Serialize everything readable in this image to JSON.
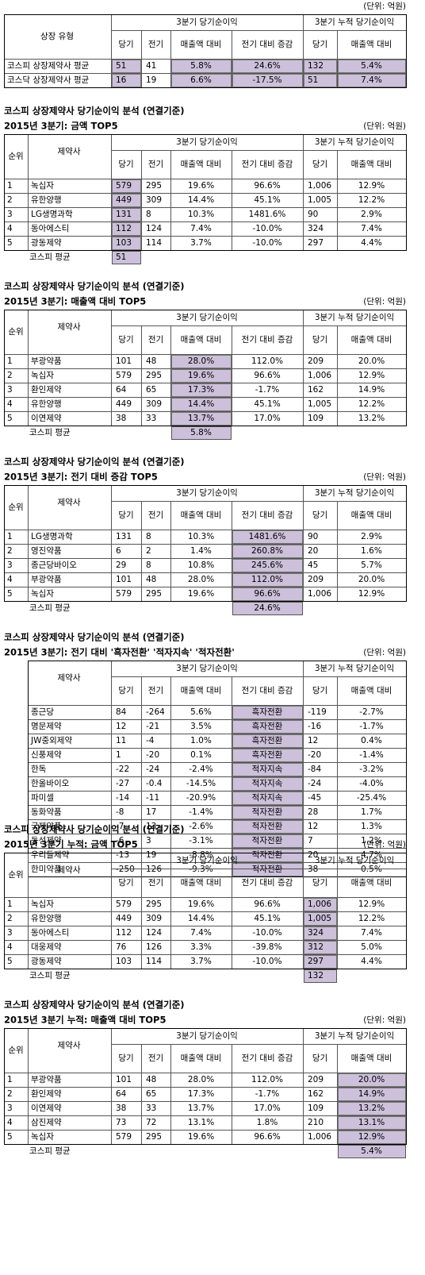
{
  "highlight_color": "#ccc0da",
  "summary": {
    "unit": "(단위: 억원)",
    "header": {
      "type": "상장 유형",
      "group1": "3분기 당기순이익",
      "group2": "3분기 누적 당기순이익",
      "cols": [
        "당기",
        "전기",
        "매출액 대비",
        "전기 대비 증감",
        "당기",
        "매출액 대비"
      ]
    },
    "highlight_columns": [
      0,
      2,
      3,
      4,
      5
    ],
    "rows": [
      [
        "코스피 상장제약사 평균",
        "51",
        "41",
        "5.8%",
        "24.6%",
        "132",
        "5.4%"
      ],
      [
        "코스닥 상장제약사 평균",
        "16",
        "19",
        "6.6%",
        "-17.5%",
        "51",
        "7.4%"
      ]
    ]
  },
  "sections": [
    {
      "title": "코스피 상장제약사 당기순이익 분석 (연결기준)",
      "subtitle": "2015년 3분기:  금액 TOP5",
      "unit": "(단위: 억원)",
      "header": {
        "rank": "순위",
        "company": "제약사",
        "group1": "3분기 당기순이익",
        "group2": "3분기 누적 당기순이익",
        "cols": [
          "당기",
          "전기",
          "매출액 대비",
          "전기 대비 증감",
          "당기",
          "매출액 대비"
        ]
      },
      "highlight_columns": [
        0
      ],
      "rows": [
        [
          "1",
          "녹십자",
          "579",
          "295",
          "19.6%",
          "96.6%",
          "1,006",
          "12.9%"
        ],
        [
          "2",
          "유한양행",
          "449",
          "309",
          "14.4%",
          "45.1%",
          "1,005",
          "12.2%"
        ],
        [
          "3",
          "LG생명과학",
          "131",
          "8",
          "10.3%",
          "1481.6%",
          "90",
          "2.9%"
        ],
        [
          "4",
          "동아에스티",
          "112",
          "124",
          "7.4%",
          "-10.0%",
          "324",
          "7.4%"
        ],
        [
          "5",
          "광동제약",
          "103",
          "114",
          "3.7%",
          "-10.0%",
          "297",
          "4.4%"
        ]
      ],
      "average": {
        "label": "코스피 평균",
        "value": "51"
      }
    },
    {
      "title": "코스피 상장제약사 당기순이익 분석 (연결기준)",
      "subtitle": "2015년 3분기:  매출액 대비 TOP5",
      "unit": "(단위: 억원)",
      "header": {
        "rank": "순위",
        "company": "제약사",
        "group1": "3분기 당기순이익",
        "group2": "3분기 누적 당기순이익",
        "cols": [
          "당기",
          "전기",
          "매출액 대비",
          "전기 대비 증감",
          "당기",
          "매출액 대비"
        ]
      },
      "highlight_columns": [
        2
      ],
      "rows": [
        [
          "1",
          "부광약품",
          "101",
          "48",
          "28.0%",
          "112.0%",
          "209",
          "20.0%"
        ],
        [
          "2",
          "녹십자",
          "579",
          "295",
          "19.6%",
          "96.6%",
          "1,006",
          "12.9%"
        ],
        [
          "3",
          "환인제약",
          "64",
          "65",
          "17.3%",
          "-1.7%",
          "162",
          "14.9%"
        ],
        [
          "4",
          "유한양행",
          "449",
          "309",
          "14.4%",
          "45.1%",
          "1,005",
          "12.2%"
        ],
        [
          "5",
          "이연제약",
          "38",
          "33",
          "13.7%",
          "17.0%",
          "109",
          "13.2%"
        ]
      ],
      "average": {
        "label": "코스피 평균",
        "value": "5.8%"
      }
    },
    {
      "title": "코스피 상장제약사 당기순이익 분석 (연결기준)",
      "subtitle": "2015년 3분기:  전기 대비 증감 TOP5",
      "unit": "(단위: 억원)",
      "header": {
        "rank": "순위",
        "company": "제약사",
        "group1": "3분기 당기순이익",
        "group2": "3분기 누적 당기순이익",
        "cols": [
          "당기",
          "전기",
          "매출액 대비",
          "전기 대비 증감",
          "당기",
          "매출액 대비"
        ]
      },
      "highlight_columns": [
        3
      ],
      "rows": [
        [
          "1",
          "LG생명과학",
          "131",
          "8",
          "10.3%",
          "1481.6%",
          "90",
          "2.9%"
        ],
        [
          "2",
          "영진약품",
          "6",
          "2",
          "1.4%",
          "260.8%",
          "20",
          "1.6%"
        ],
        [
          "3",
          "종근당바이오",
          "29",
          "8",
          "10.8%",
          "245.6%",
          "45",
          "5.7%"
        ],
        [
          "4",
          "부광약품",
          "101",
          "48",
          "28.0%",
          "112.0%",
          "209",
          "20.0%"
        ],
        [
          "5",
          "녹십자",
          "579",
          "295",
          "19.6%",
          "96.6%",
          "1,006",
          "12.9%"
        ]
      ],
      "average": {
        "label": "코스피 평균",
        "value": "24.6%"
      }
    },
    {
      "title": "코스피 상장제약사 당기순이익 분석 (연결기준)",
      "subtitle": "2015년 3분기: 전기 대비 '흑자전환' '적자지속' '적자전환'",
      "unit": "(단위: 억원)",
      "header": {
        "company": "제약사",
        "group1": "3분기 당기순이익",
        "group2": "3분기 누적 당기순이익",
        "cols": [
          "당기",
          "전기",
          "매출액 대비",
          "전기 대비 증감",
          "당기",
          "매출액 대비"
        ]
      },
      "highlight_columns": [
        3
      ],
      "rows": [
        [
          "종근당",
          "84",
          "-264",
          "5.6%",
          "흑자전환",
          "-119",
          "-2.7%"
        ],
        [
          "명문제약",
          "12",
          "-21",
          "3.5%",
          "흑자전환",
          "-16",
          "-1.7%"
        ],
        [
          "JW중외제약",
          "11",
          "-4",
          "1.0%",
          "흑자전환",
          "12",
          "0.4%"
        ],
        [
          "신풍제약",
          "1",
          "-20",
          "0.1%",
          "흑자전환",
          "-20",
          "-1.4%"
        ],
        [
          "한독",
          "-22",
          "-24",
          "-2.4%",
          "적자지속",
          "-84",
          "-3.2%"
        ],
        [
          "한올바이오",
          "-27",
          "-0.4",
          "-14.5%",
          "적자지속",
          "-24",
          "-4.0%"
        ],
        [
          "파미셀",
          "-14",
          "-11",
          "-20.9%",
          "적자지속",
          "-45",
          "-25.4%"
        ],
        [
          "동화약품",
          "-8",
          "17",
          "-1.4%",
          "적자전환",
          "28",
          "1.7%"
        ],
        [
          "국제약품",
          "-7",
          "13",
          "-2.6%",
          "적자전환",
          "12",
          "1.3%"
        ],
        [
          "동성제약",
          "-6",
          "3",
          "-3.1%",
          "적자전환",
          "7",
          "1.2%"
        ],
        [
          "우리들제약",
          "-13",
          "19",
          "-8.8%",
          "적자전환",
          "20",
          "4.7%"
        ],
        [
          "한미약품",
          "-250",
          "126",
          "-9.3%",
          "적자전환",
          "38",
          "0.5%"
        ]
      ]
    },
    {
      "title": "코스피 상장제약사 당기순이익 분석 (연결기준)",
      "subtitle": "2015년 3분기 누적:  금액 TOP5",
      "unit": "(단위: 억원)",
      "header": {
        "rank": "순위",
        "company": "제약사",
        "group1": "3분기 당기순이익",
        "group2": "3분기 누적 당기순이익",
        "cols": [
          "당기",
          "전기",
          "매출액 대비",
          "전기 대비 증감",
          "당기",
          "매출액 대비"
        ]
      },
      "highlight_columns": [
        4
      ],
      "rows": [
        [
          "1",
          "녹십자",
          "579",
          "295",
          "19.6%",
          "96.6%",
          "1,006",
          "12.9%"
        ],
        [
          "2",
          "유한양행",
          "449",
          "309",
          "14.4%",
          "45.1%",
          "1,005",
          "12.2%"
        ],
        [
          "3",
          "동아에스티",
          "112",
          "124",
          "7.4%",
          "-10.0%",
          "324",
          "7.4%"
        ],
        [
          "4",
          "대웅제약",
          "76",
          "126",
          "3.3%",
          "-39.8%",
          "312",
          "5.0%"
        ],
        [
          "5",
          "광동제약",
          "103",
          "114",
          "3.7%",
          "-10.0%",
          "297",
          "4.4%"
        ]
      ],
      "average": {
        "label": "코스피 평균",
        "value": "132"
      }
    },
    {
      "title": "코스피 상장제약사 당기순이익 분석 (연결기준)",
      "subtitle": "2015년 3분기 누적:  매출액 대비 TOP5",
      "unit": "(단위: 억원)",
      "header": {
        "rank": "순위",
        "company": "제약사",
        "group1": "3분기 당기순이익",
        "group2": "3분기 누적 당기순이익",
        "cols": [
          "당기",
          "전기",
          "매출액 대비",
          "전기 대비 증감",
          "당기",
          "매출액 대비"
        ]
      },
      "highlight_columns": [
        5
      ],
      "rows": [
        [
          "1",
          "부광약품",
          "101",
          "48",
          "28.0%",
          "112.0%",
          "209",
          "20.0%"
        ],
        [
          "2",
          "환인제약",
          "64",
          "65",
          "17.3%",
          "-1.7%",
          "162",
          "14.9%"
        ],
        [
          "3",
          "이연제약",
          "38",
          "33",
          "13.7%",
          "17.0%",
          "109",
          "13.2%"
        ],
        [
          "4",
          "삼진제약",
          "73",
          "72",
          "13.1%",
          "1.8%",
          "210",
          "13.1%"
        ],
        [
          "5",
          "녹십자",
          "579",
          "295",
          "19.6%",
          "96.6%",
          "1,006",
          "12.9%"
        ]
      ],
      "average": {
        "label": "코스피 평균",
        "value": "5.4%"
      }
    }
  ]
}
